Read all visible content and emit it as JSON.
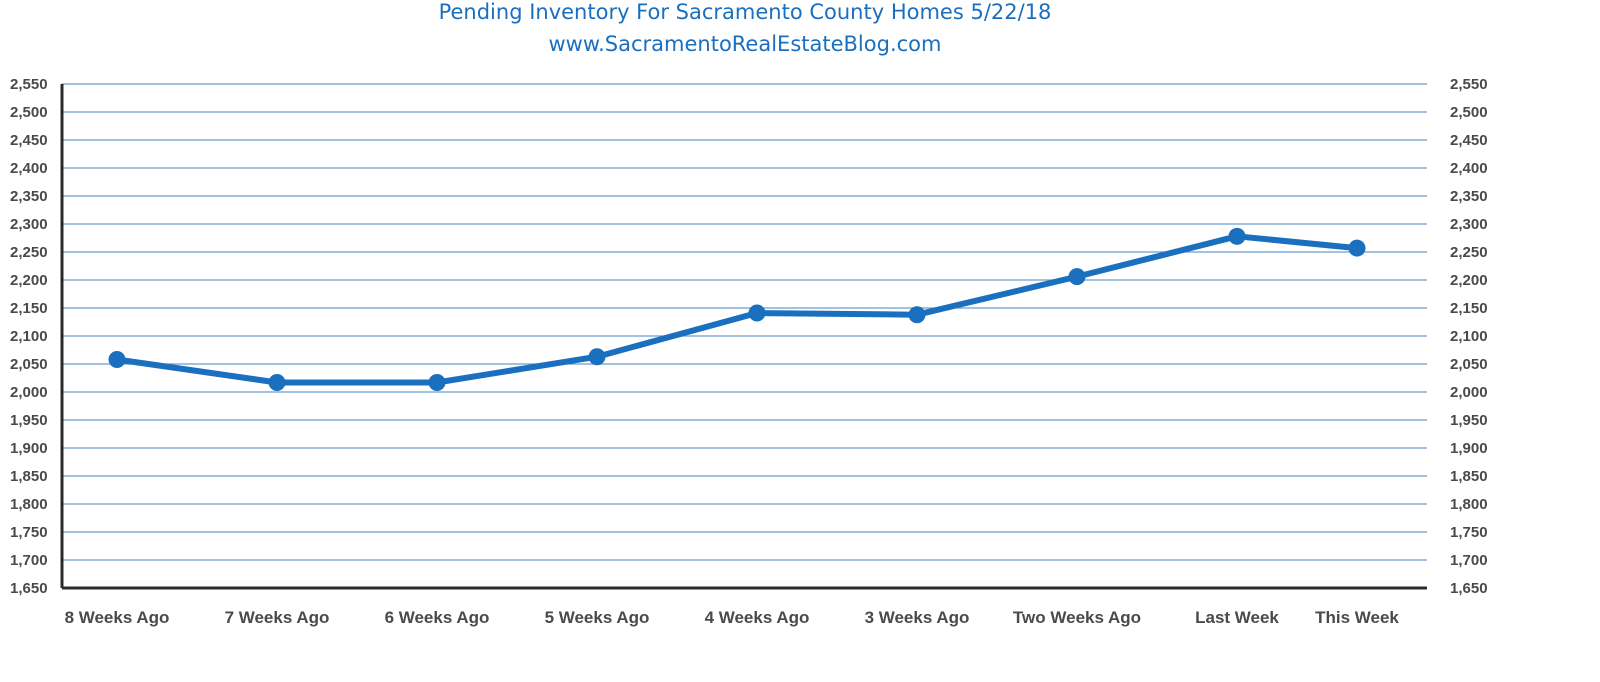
{
  "chart_data": {
    "type": "line",
    "title": "Pending Inventory For Sacramento County Homes 5/22/18",
    "subtitle": "www.SacramentoRealEstateBlog.com",
    "xlabel": "",
    "ylabel": "",
    "categories": [
      "8 Weeks Ago",
      "7 Weeks Ago",
      "6 Weeks Ago",
      "5 Weeks Ago",
      "4 Weeks Ago",
      "3 Weeks Ago",
      "Two Weeks Ago",
      "Last Week",
      "This Week"
    ],
    "series": [
      {
        "values": [
          2058,
          2017,
          2017,
          2063,
          2141,
          2138,
          2206,
          2278,
          2257
        ]
      }
    ],
    "ylim": [
      1650,
      2550
    ],
    "ytick_step": 50,
    "y_axis_left": true,
    "y_axis_right": true,
    "grid": true,
    "legend": "none",
    "line_color": "#1a6fbf",
    "grid_color": "#6e9ccc",
    "axis_color": "#2b2b2b"
  }
}
